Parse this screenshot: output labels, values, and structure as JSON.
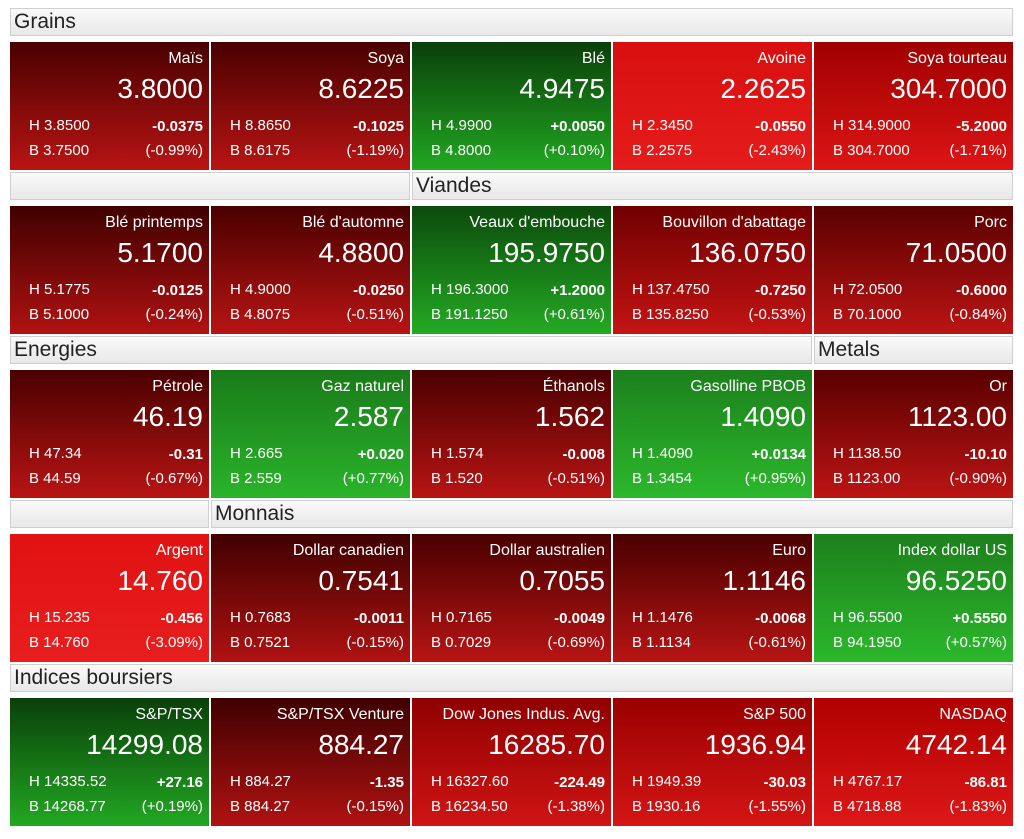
{
  "rows": [
    {
      "headers": [
        "Grains"
      ],
      "tiles": [
        {
          "name": "Maïs",
          "price": "3.8000",
          "high": "H 3.8500",
          "change": "-0.0375",
          "low": "B 3.7500",
          "pct": "(-0.99%)",
          "colors": [
            "#4a0000",
            "#b81414"
          ]
        },
        {
          "name": "Soya",
          "price": "8.6225",
          "high": "H 8.8650",
          "change": "-0.1025",
          "low": "B 8.6175",
          "pct": "(-1.19%)",
          "colors": [
            "#4a0000",
            "#b81414"
          ]
        },
        {
          "name": "Blé",
          "price": "4.9475",
          "high": "H 4.9900",
          "change": "+0.0050",
          "low": "B 4.8000",
          "pct": "(+0.10%)",
          "colors": [
            "#0a3f0a",
            "#22a822"
          ]
        },
        {
          "name": "Avoine",
          "price": "2.2625",
          "high": "H 2.3450",
          "change": "-0.0550",
          "low": "B 2.2575",
          "pct": "(-2.43%)",
          "colors": [
            "#d80f0f",
            "#e41c1c"
          ]
        },
        {
          "name": "Soya tourteau",
          "price": "304.7000",
          "high": "H 314.9000",
          "change": "-5.2000",
          "low": "B 304.7000",
          "pct": "(-1.71%)",
          "colors": [
            "#a00000",
            "#dd1515"
          ]
        }
      ]
    },
    {
      "headers": [
        "Viandes"
      ],
      "tiles": [
        {
          "name": "Blé printemps",
          "price": "5.1700",
          "high": "H 5.1775",
          "change": "-0.0125",
          "low": "B 5.1000",
          "pct": "(-0.24%)",
          "colors": [
            "#400000",
            "#b01212"
          ]
        },
        {
          "name": "Blé d'automne",
          "price": "4.8800",
          "high": "H 4.9000",
          "change": "-0.0250",
          "low": "B 4.8075",
          "pct": "(-0.51%)",
          "colors": [
            "#4a0000",
            "#b81414"
          ]
        },
        {
          "name": "Veaux d'embouche",
          "price": "195.9750",
          "high": "H 196.3000",
          "change": "+1.2000",
          "low": "B 191.1250",
          "pct": "(+0.61%)",
          "colors": [
            "#0c4a0c",
            "#24aa24"
          ]
        },
        {
          "name": "Bouvillon d'abattage",
          "price": "136.0750",
          "high": "H 137.4750",
          "change": "-0.7250",
          "low": "B 135.8250",
          "pct": "(-0.53%)",
          "colors": [
            "#700000",
            "#c41414"
          ]
        },
        {
          "name": "Porc",
          "price": "71.0500",
          "high": "H 72.0500",
          "change": "-0.6000",
          "low": "B 70.1000",
          "pct": "(-0.84%)",
          "colors": [
            "#5a0000",
            "#bc1414"
          ]
        }
      ]
    },
    {
      "headers": [
        "Energies",
        "Metals"
      ],
      "tiles": [
        {
          "name": "Pétrole",
          "price": "46.19",
          "high": "H 47.34",
          "change": "-0.31",
          "low": "B 44.59",
          "pct": "(-0.67%)",
          "colors": [
            "#4a0000",
            "#b81414"
          ]
        },
        {
          "name": "Gaz naturel",
          "price": "2.587",
          "high": "H 2.665",
          "change": "+0.020",
          "low": "B 2.559",
          "pct": "(+0.77%)",
          "colors": [
            "#1a7a1a",
            "#2ab42a"
          ]
        },
        {
          "name": "Éthanols",
          "price": "1.562",
          "high": "H 1.574",
          "change": "-0.008",
          "low": "B 1.520",
          "pct": "(-0.51%)",
          "colors": [
            "#4a0000",
            "#b81414"
          ]
        },
        {
          "name": "Gasolline PBOB",
          "price": "1.4090",
          "high": "H 1.4090",
          "change": "+0.0134",
          "low": "B 1.3454",
          "pct": "(+0.95%)",
          "colors": [
            "#1c801c",
            "#2cb82c"
          ]
        },
        {
          "name": "Or",
          "price": "1123.00",
          "high": "H 1138.50",
          "change": "-10.10",
          "low": "B 1123.00",
          "pct": "(-0.90%)",
          "colors": [
            "#5a0000",
            "#bc1414"
          ]
        }
      ]
    },
    {
      "headers": [
        "Monnais"
      ],
      "tiles": [
        {
          "name": "Argent",
          "price": "14.760",
          "high": "H 15.235",
          "change": "-0.456",
          "low": "B 14.760",
          "pct": "(-3.09%)",
          "colors": [
            "#e01212",
            "#e81e1e"
          ]
        },
        {
          "name": "Dollar canadien",
          "price": "0.7541",
          "high": "H 0.7683",
          "change": "-0.0011",
          "low": "B 0.7521",
          "pct": "(-0.15%)",
          "colors": [
            "#400000",
            "#b01212"
          ]
        },
        {
          "name": "Dollar australien",
          "price": "0.7055",
          "high": "H 0.7165",
          "change": "-0.0049",
          "low": "B 0.7029",
          "pct": "(-0.69%)",
          "colors": [
            "#4a0000",
            "#b81414"
          ]
        },
        {
          "name": "Euro",
          "price": "1.1146",
          "high": "H 1.1476",
          "change": "-0.0068",
          "low": "B 1.1134",
          "pct": "(-0.61%)",
          "colors": [
            "#4a0000",
            "#b81414"
          ]
        },
        {
          "name": "Index dollar US",
          "price": "96.5250",
          "high": "H 96.5500",
          "change": "+0.5550",
          "low": "B 94.1950",
          "pct": "(+0.57%)",
          "colors": [
            "#1c801c",
            "#2cb82c"
          ]
        }
      ]
    },
    {
      "headers": [
        "Indices boursiers"
      ],
      "tiles": [
        {
          "name": "S&P/TSX",
          "price": "14299.08",
          "high": "H 14335.52",
          "change": "+27.16",
          "low": "B 14268.77",
          "pct": "(+0.19%)",
          "colors": [
            "#0a3f0a",
            "#22a822"
          ]
        },
        {
          "name": "S&P/TSX Venture",
          "price": "884.27",
          "high": "H 884.27",
          "change": "-1.35",
          "low": "B 884.27",
          "pct": "(-0.15%)",
          "colors": [
            "#400000",
            "#b01212"
          ]
        },
        {
          "name": "Dow Jones Indus. Avg.",
          "price": "16285.70",
          "high": "H 16327.60",
          "change": "-224.49",
          "low": "B 16234.50",
          "pct": "(-1.38%)",
          "colors": [
            "#900000",
            "#d01414"
          ]
        },
        {
          "name": "S&P 500",
          "price": "1936.94",
          "high": "H 1949.39",
          "change": "-30.03",
          "low": "B 1930.16",
          "pct": "(-1.55%)",
          "colors": [
            "#9a0000",
            "#d41515"
          ]
        },
        {
          "name": "NASDAQ",
          "price": "4742.14",
          "high": "H 4767.17",
          "change": "-86.81",
          "low": "B 4718.88",
          "pct": "(-1.83%)",
          "colors": [
            "#b00000",
            "#dd1818"
          ]
        }
      ]
    }
  ]
}
